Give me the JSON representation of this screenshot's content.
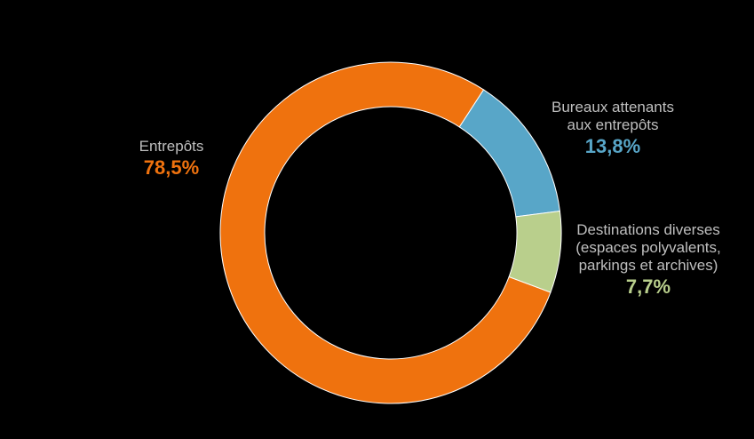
{
  "chart_data": {
    "type": "pie",
    "subtype": "donut",
    "title": "",
    "categories": [
      "Entrepôts",
      "Bureaux attenants aux entrepôts",
      "Destinations diverses (espaces polyvalents, parkings et archives)"
    ],
    "values": [
      78.5,
      13.8,
      7.7
    ],
    "unit": "%",
    "slices": [
      {
        "label": "Entrepôts",
        "value": 78.5,
        "value_label": "78,5%",
        "color": "#ef720e"
      },
      {
        "label": "Bureaux attenants\naux entrepôts",
        "value": 13.8,
        "value_label": "13,8%",
        "color": "#58a6c8"
      },
      {
        "label": "Destinations diverses\n(espaces polyvalents,\nparkings et archives)",
        "value": 7.7,
        "value_label": "7,7%",
        "color": "#b9cf8c"
      }
    ],
    "label_color": "#bfbfbf",
    "legend": "none",
    "background": "#000000"
  }
}
